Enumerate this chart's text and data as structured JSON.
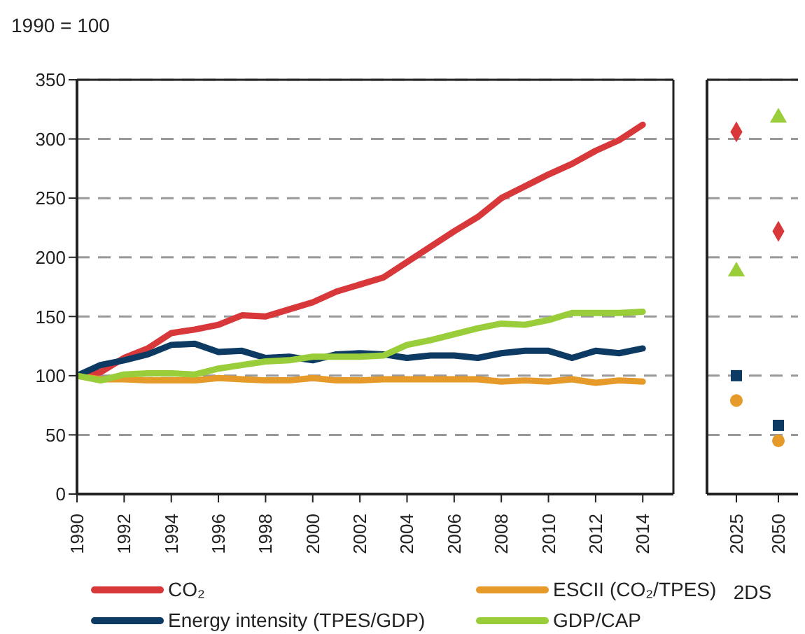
{
  "chart_data": [
    {
      "type": "line",
      "ylabel": "1990 = 100",
      "x": [
        1990,
        1991,
        1992,
        1993,
        1994,
        1995,
        1996,
        1997,
        1998,
        1999,
        2000,
        2001,
        2002,
        2003,
        2004,
        2005,
        2006,
        2007,
        2008,
        2009,
        2010,
        2011,
        2012,
        2013,
        2014
      ],
      "xlim": [
        1990,
        2015.3
      ],
      "xticks": [
        1990,
        1992,
        1994,
        1996,
        1998,
        2000,
        2002,
        2004,
        2006,
        2008,
        2010,
        2012,
        2014
      ],
      "ylim": [
        0,
        350
      ],
      "yticks": [
        0,
        50,
        100,
        150,
        200,
        250,
        300,
        350
      ],
      "grid": "y",
      "legend": "bottom",
      "marker": "none",
      "line_style": "solid",
      "series": [
        {
          "name": "CO₂",
          "color": "#d9383a",
          "values": [
            100,
            103,
            115,
            123,
            136,
            139,
            143,
            151,
            150,
            156,
            162,
            171,
            177,
            183,
            196,
            209,
            222,
            234,
            250,
            260,
            270,
            279,
            290,
            299,
            312
          ]
        },
        {
          "name": "ESCII (CO₂/TPES)",
          "color": "#e59a2a",
          "values": [
            100,
            97,
            97,
            96,
            96,
            96,
            98,
            97,
            96,
            96,
            98,
            96,
            96,
            97,
            97,
            97,
            97,
            97,
            95,
            96,
            95,
            97,
            94,
            96,
            95
          ]
        },
        {
          "name": "Energy intensity (TPES/GDP)",
          "color": "#0d3a63",
          "values": [
            100,
            109,
            113,
            118,
            126,
            127,
            120,
            121,
            115,
            116,
            113,
            118,
            119,
            118,
            115,
            117,
            117,
            115,
            119,
            121,
            121,
            115,
            121,
            119,
            123
          ]
        },
        {
          "name": "GDP/CAP",
          "color": "#9acd3a",
          "values": [
            100,
            96,
            101,
            102,
            102,
            101,
            106,
            109,
            112,
            113,
            116,
            116,
            116,
            117,
            126,
            130,
            135,
            140,
            144,
            143,
            147,
            153,
            153,
            153,
            154
          ]
        }
      ]
    },
    {
      "type": "scatter",
      "xlabel": "2DS",
      "categories": [
        "2025",
        "2050"
      ],
      "ylim": [
        0,
        350
      ],
      "yticks": [
        0,
        50,
        100,
        150,
        200,
        250,
        300,
        350
      ],
      "grid": "y",
      "tick_labels": "x",
      "series": [
        {
          "color": "#d9383a",
          "marker": "diamond",
          "values": [
            306,
            222
          ]
        },
        {
          "color": "#e59a2a",
          "marker": "circle",
          "values": [
            79,
            45
          ]
        },
        {
          "color": "#0d3a63",
          "marker": "square",
          "values": [
            100,
            58
          ]
        },
        {
          "color": "#9acd3a",
          "marker": "triangle",
          "values": [
            188,
            318
          ]
        }
      ]
    }
  ]
}
